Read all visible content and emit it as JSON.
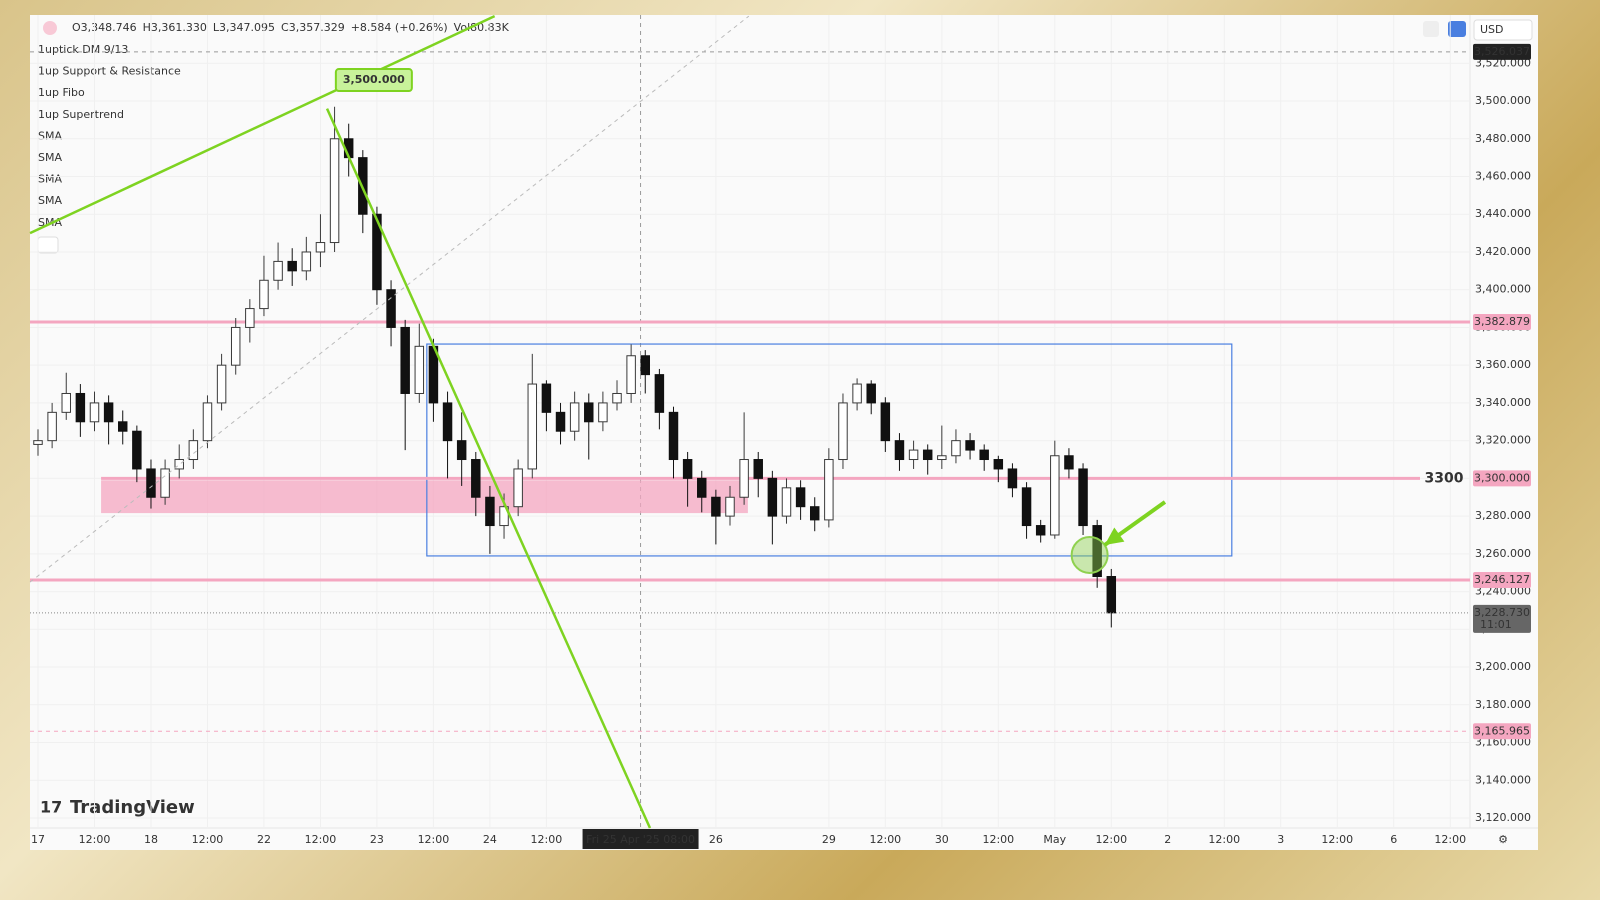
{
  "chart_data": {
    "type": "candlestick",
    "header": [
      "O3,348.746",
      "H3,361.330",
      "L3,347.095",
      "C3,357.329",
      "+8.584 (+0.26%)",
      "Vol80.83K"
    ],
    "indicators": [
      "1uptick DM 9/13",
      "1up Support & Resistance",
      "1up Fibo",
      "1up Supertrend",
      "SMA",
      "SMA",
      "SMA",
      "SMA",
      "SMA"
    ],
    "currency": "USD",
    "brand": "TradingView",
    "up_color": "#3a3a3a",
    "down_color": "#111111",
    "x": [
      0,
      3,
      6,
      9,
      12,
      15,
      18,
      21,
      24,
      27,
      30,
      33,
      36,
      39,
      42,
      45,
      48,
      51,
      54,
      57,
      60,
      63,
      66,
      69,
      72,
      75,
      78,
      81,
      84,
      87,
      90,
      93,
      96,
      99,
      102,
      105,
      108,
      111,
      114,
      117,
      120,
      123,
      126,
      129,
      132,
      135,
      138,
      141,
      144,
      147,
      150,
      153,
      156,
      159,
      162,
      165,
      168,
      171,
      174,
      177,
      180,
      183,
      186,
      189,
      192,
      195,
      198,
      201,
      204,
      207,
      210,
      213,
      216,
      219,
      222,
      225,
      228
    ],
    "open": [
      3318,
      3320,
      3335,
      3345,
      3330,
      3340,
      3330,
      3325,
      3305,
      3290,
      3305,
      3310,
      3320,
      3340,
      3360,
      3380,
      3390,
      3405,
      3415,
      3410,
      3420,
      3425,
      3480,
      3470,
      3440,
      3400,
      3380,
      3345,
      3370,
      3340,
      3320,
      3310,
      3290,
      3275,
      3285,
      3305,
      3350,
      3335,
      3325,
      3340,
      3330,
      3340,
      3345,
      3365,
      3355,
      3335,
      3310,
      3300,
      3290,
      3280,
      3290,
      3310,
      3300,
      3280,
      3295,
      3285,
      3278,
      3310,
      3340,
      3350,
      3340,
      3320,
      3310,
      3315,
      3310,
      3312,
      3320,
      3315,
      3310,
      3305,
      3295,
      3275,
      3270,
      3312,
      3305,
      3275,
      3248
    ],
    "high": [
      3326,
      3340,
      3356,
      3350,
      3346,
      3344,
      3336,
      3328,
      3310,
      3310,
      3318,
      3326,
      3344,
      3366,
      3385,
      3395,
      3418,
      3425,
      3422,
      3428,
      3440,
      3497,
      3488,
      3474,
      3444,
      3405,
      3384,
      3382,
      3374,
      3346,
      3335,
      3314,
      3296,
      3292,
      3310,
      3366,
      3352,
      3340,
      3346,
      3345,
      3346,
      3352,
      3371,
      3368,
      3358,
      3338,
      3314,
      3304,
      3294,
      3296,
      3335,
      3314,
      3304,
      3300,
      3299,
      3290,
      3316,
      3345,
      3353,
      3352,
      3343,
      3324,
      3320,
      3318,
      3328,
      3326,
      3324,
      3318,
      3312,
      3308,
      3298,
      3278,
      3320,
      3316,
      3308,
      3278,
      3252
    ],
    "low": [
      3312,
      3316,
      3331,
      3322,
      3325,
      3318,
      3318,
      3298,
      3284,
      3286,
      3300,
      3305,
      3316,
      3336,
      3355,
      3372,
      3386,
      3400,
      3402,
      3405,
      3412,
      3420,
      3460,
      3430,
      3392,
      3370,
      3315,
      3340,
      3330,
      3300,
      3296,
      3280,
      3260,
      3268,
      3280,
      3300,
      3325,
      3318,
      3320,
      3310,
      3325,
      3336,
      3340,
      3345,
      3326,
      3300,
      3285,
      3282,
      3265,
      3275,
      3286,
      3290,
      3265,
      3276,
      3278,
      3272,
      3274,
      3305,
      3336,
      3334,
      3314,
      3304,
      3305,
      3302,
      3305,
      3308,
      3310,
      3304,
      3298,
      3290,
      3268,
      3266,
      3268,
      3300,
      3270,
      3242,
      3221
    ],
    "close": [
      3320,
      3335,
      3345,
      3330,
      3340,
      3330,
      3325,
      3305,
      3290,
      3305,
      3310,
      3320,
      3340,
      3360,
      3380,
      3390,
      3405,
      3415,
      3410,
      3420,
      3425,
      3480,
      3470,
      3440,
      3400,
      3380,
      3345,
      3370,
      3340,
      3320,
      3310,
      3290,
      3275,
      3285,
      3305,
      3350,
      3335,
      3325,
      3340,
      3330,
      3340,
      3345,
      3365,
      3355,
      3335,
      3310,
      3300,
      3290,
      3280,
      3290,
      3310,
      3300,
      3280,
      3295,
      3285,
      3278,
      3310,
      3340,
      3350,
      3340,
      3320,
      3310,
      3315,
      3310,
      3312,
      3320,
      3315,
      3310,
      3305,
      3295,
      3275,
      3270,
      3312,
      3305,
      3275,
      3248,
      3228.73
    ],
    "xlim": [
      -1.7,
      304.2
    ],
    "ylim": [
      3114.7,
      3545.6
    ],
    "xticks": [
      {
        "value": 0,
        "label": "17"
      },
      {
        "value": 12,
        "label": "12:00"
      },
      {
        "value": 24,
        "label": "18"
      },
      {
        "value": 36,
        "label": "12:00"
      },
      {
        "value": 48,
        "label": "22"
      },
      {
        "value": 60,
        "label": "12:00"
      },
      {
        "value": 72,
        "label": "23"
      },
      {
        "value": 84,
        "label": "12:00"
      },
      {
        "value": 96,
        "label": "24"
      },
      {
        "value": 108,
        "label": "12:00"
      },
      {
        "value": 144,
        "label": "26"
      },
      {
        "value": 168,
        "label": "29"
      },
      {
        "value": 180,
        "label": "12:00"
      },
      {
        "value": 192,
        "label": "30"
      },
      {
        "value": 204,
        "label": "12:00"
      },
      {
        "value": 216,
        "label": "May"
      },
      {
        "value": 228,
        "label": "12:00"
      },
      {
        "value": 240,
        "label": "2"
      },
      {
        "value": 252,
        "label": "12:00"
      },
      {
        "value": 264,
        "label": "3"
      },
      {
        "value": 276,
        "label": "12:00"
      },
      {
        "value": 288,
        "label": "6"
      },
      {
        "value": 300,
        "label": "12:00"
      }
    ],
    "yticks": [
      {
        "value": 3120,
        "label": "3,120.000"
      },
      {
        "value": 3140,
        "label": "3,140.000"
      },
      {
        "value": 3160,
        "label": "3,160.000"
      },
      {
        "value": 3180,
        "label": "3,180.000"
      },
      {
        "value": 3200,
        "label": "3,200.000"
      },
      {
        "value": 3220,
        "label": "3,220.000"
      },
      {
        "value": 3240,
        "label": "3,240.000"
      },
      {
        "value": 3260,
        "label": "3,260.000"
      },
      {
        "value": 3280,
        "label": "3,280.000"
      },
      {
        "value": 3300,
        "label": "3,300.000"
      },
      {
        "value": 3320,
        "label": "3,320.000"
      },
      {
        "value": 3340,
        "label": "3,340.000"
      },
      {
        "value": 3360,
        "label": "3,360.000"
      },
      {
        "value": 3380,
        "label": "3,380.000"
      },
      {
        "value": 3400,
        "label": "3,400.000"
      },
      {
        "value": 3420,
        "label": "3,420.000"
      },
      {
        "value": 3440,
        "label": "3,440.000"
      },
      {
        "value": 3460,
        "label": "3,460.000"
      },
      {
        "value": 3480,
        "label": "3,480.000"
      },
      {
        "value": 3500,
        "label": "3,500.000"
      },
      {
        "value": 3520,
        "label": "3,520.000"
      }
    ],
    "grid": true,
    "levels": [
      {
        "value": 3382.879,
        "label": "3,382.879",
        "color": "#f4a6c0"
      },
      {
        "value": 3300,
        "label": "3,300.000",
        "text": "3300",
        "color": "#f4a6c0"
      },
      {
        "value": 3246.127,
        "label": "3,246.127",
        "color": "#f4a6c0"
      },
      {
        "value": 3165.965,
        "label": "3,165.965",
        "color": "#f4a6c0",
        "dashed": true
      }
    ],
    "crosshair": {
      "x": {
        "value": 128,
        "label": "Fri 25 Apr '25   08:00"
      },
      "y": {
        "value": 3526.037,
        "label": "3,526.037"
      }
    },
    "last_price": {
      "value": 3228.73,
      "label": "3,228.730",
      "countdown": "11:01"
    },
    "zone": {
      "x": [
        13.4,
        150.8
      ],
      "y": [
        3281.6,
        3299
      ],
      "color": "#f4a6c0"
    },
    "range_box": {
      "x": [
        82.6,
        253.6
      ],
      "y": [
        3258.9,
        3371.2
      ],
      "color": "#4a7fe0"
    },
    "trend_lines": [
      {
        "x": [
          -1.7,
          97
        ],
        "y": [
          3430,
          3545
        ],
        "color": "#7ed321"
      },
      {
        "x": [
          61.4,
          130
        ],
        "y": [
          3496,
          3114.7
        ],
        "color": "#7ed321"
      },
      {
        "x": [
          -1.7,
          151
        ],
        "y": [
          3245,
          3545
        ],
        "color": "#bbbbbb",
        "dashed": true
      }
    ],
    "callout": {
      "x": 62,
      "value": 3500,
      "label": "3,500.000"
    },
    "marker": {
      "x": 223.4,
      "y": 3259.4,
      "color": "#8fd14f"
    },
    "arrow": {
      "x": [
        239.4,
        226.6
      ],
      "y": [
        3287.5,
        3264.7
      ],
      "color": "#7ed321"
    }
  }
}
